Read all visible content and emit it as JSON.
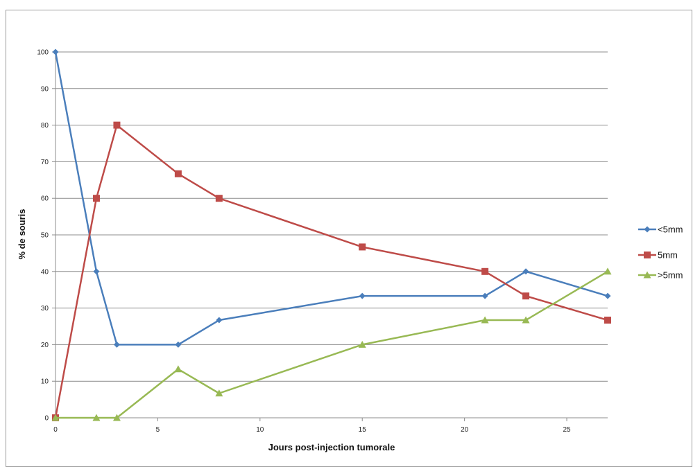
{
  "chart_data": {
    "type": "line",
    "xlabel": "Jours post-injection tumorale",
    "ylabel": "% de souris",
    "xlim": [
      0,
      27
    ],
    "ylim": [
      0,
      100
    ],
    "xticks": [
      "0",
      "5",
      "10",
      "15",
      "20",
      "25"
    ],
    "yticks": [
      "0",
      "10",
      "20",
      "30",
      "40",
      "50",
      "60",
      "70",
      "80",
      "90",
      "100"
    ],
    "grid": "horizontal",
    "legend_position": "right",
    "series": [
      {
        "name": "<5mm",
        "color": "#4a7ebb",
        "marker": "diamond",
        "x": [
          0,
          2,
          3,
          6,
          8,
          15,
          21,
          23,
          27
        ],
        "y": [
          100,
          40,
          20,
          20,
          26.7,
          33.3,
          33.3,
          40,
          33.3
        ]
      },
      {
        "name": "5mm",
        "color": "#be4b48",
        "marker": "square",
        "x": [
          0,
          2,
          3,
          6,
          8,
          15,
          21,
          23,
          27
        ],
        "y": [
          0,
          60,
          80,
          66.7,
          60,
          46.7,
          40,
          33.3,
          26.7
        ]
      },
      {
        "name": ">5mm",
        "color": "#98b954",
        "marker": "triangle",
        "x": [
          0,
          2,
          3,
          6,
          8,
          15,
          21,
          23,
          27
        ],
        "y": [
          0,
          0,
          0,
          13.3,
          6.7,
          20,
          26.7,
          26.7,
          40
        ]
      }
    ]
  }
}
